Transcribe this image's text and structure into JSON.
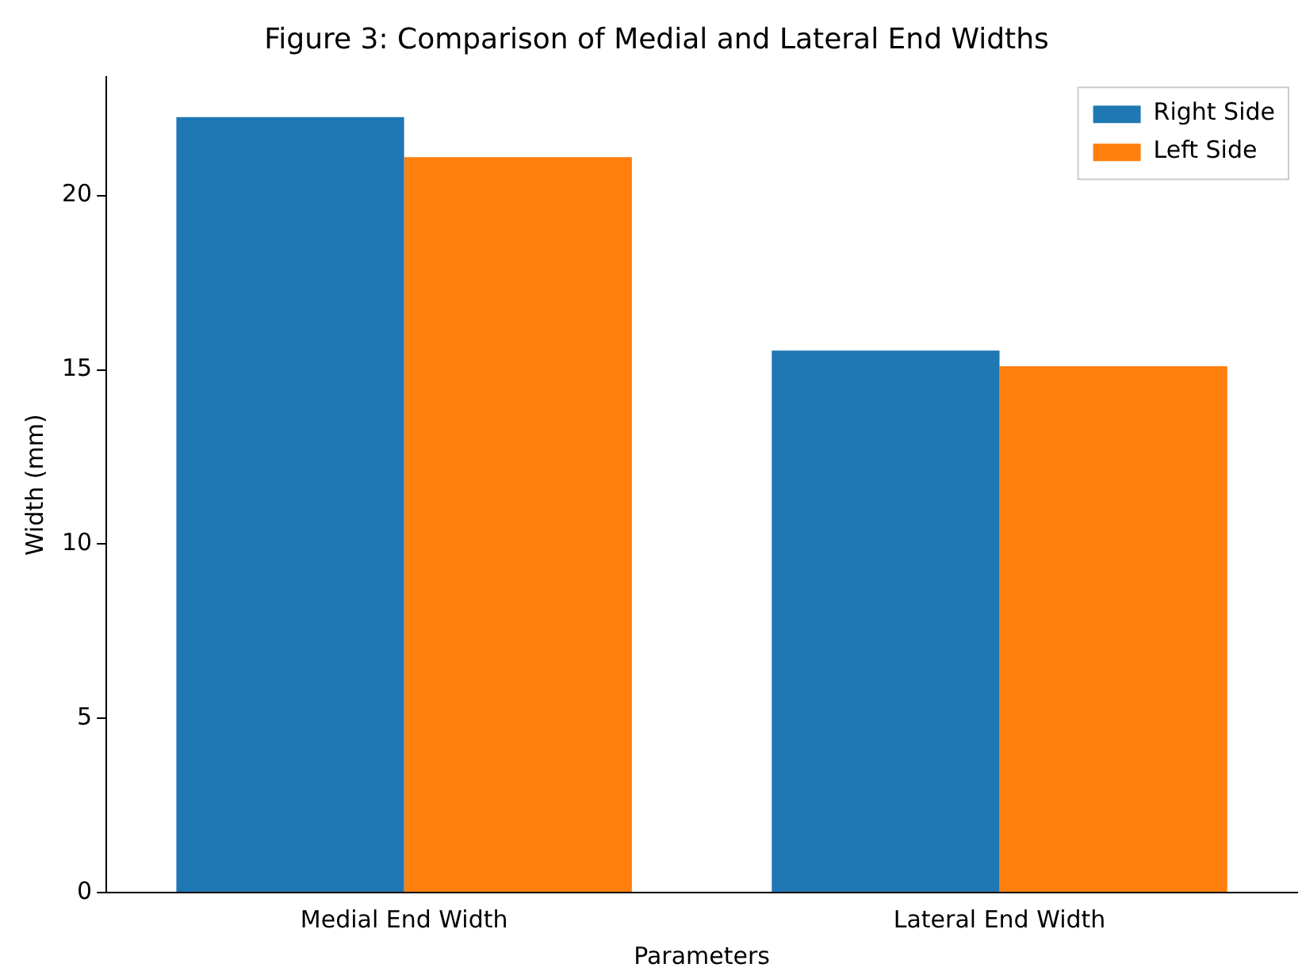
{
  "chart_data": {
    "type": "bar",
    "title": "Figure 3: Comparison of Medial and Lateral End Widths",
    "xlabel": "Parameters",
    "ylabel": "Width (mm)",
    "categories": [
      "Medial End Width",
      "Lateral End Width"
    ],
    "series": [
      {
        "name": "Right Side",
        "color": "#1f77b4",
        "values": [
          22.25,
          15.55
        ]
      },
      {
        "name": "Left Side",
        "color": "#ff7f0e",
        "values": [
          21.1,
          15.1
        ]
      }
    ],
    "ylim": [
      0,
      23.4
    ],
    "yticks": [
      0,
      5,
      10,
      15,
      20
    ],
    "grid": false,
    "legend": "top right"
  }
}
